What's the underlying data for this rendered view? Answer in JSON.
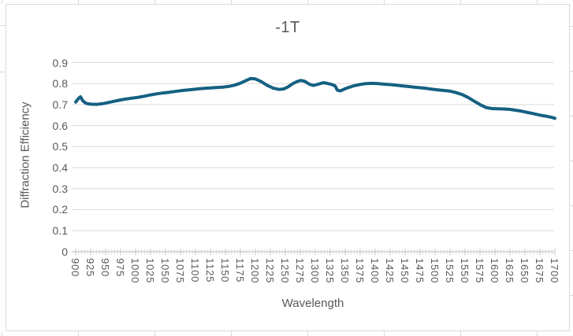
{
  "chart_data": {
    "type": "line",
    "title": "-1T",
    "xlabel": "Wavelength",
    "ylabel": "Diffraction Efficiency",
    "xlim": [
      900,
      1700
    ],
    "ylim": [
      0,
      0.9
    ],
    "grid": "horizontal",
    "legend": "none",
    "x_tick_labels": [
      "900",
      "925",
      "950",
      "975",
      "1000",
      "1025",
      "1050",
      "1075",
      "1100",
      "1125",
      "1150",
      "1175",
      "1200",
      "1225",
      "1250",
      "1275",
      "1300",
      "1325",
      "1350",
      "1375",
      "1400",
      "1425",
      "1450",
      "1475",
      "1500",
      "1525",
      "1550",
      "1575",
      "1600",
      "1625",
      "1650",
      "1675",
      "1700"
    ],
    "y_tick_labels": [
      "0.9",
      "0.8",
      "0.7",
      "0.6",
      "0.5",
      "0.4",
      "0.3",
      "0.2",
      "0.1",
      "0"
    ],
    "minor_tick_step": 5,
    "major_tick_step": 25,
    "series": [
      {
        "color": "#156082",
        "points": [
          [
            900,
            0.712
          ],
          [
            905,
            0.73
          ],
          [
            908,
            0.737
          ],
          [
            912,
            0.718
          ],
          [
            917,
            0.706
          ],
          [
            925,
            0.702
          ],
          [
            935,
            0.701
          ],
          [
            945,
            0.704
          ],
          [
            955,
            0.71
          ],
          [
            965,
            0.716
          ],
          [
            975,
            0.722
          ],
          [
            985,
            0.727
          ],
          [
            995,
            0.731
          ],
          [
            1005,
            0.735
          ],
          [
            1015,
            0.74
          ],
          [
            1025,
            0.746
          ],
          [
            1035,
            0.751
          ],
          [
            1045,
            0.755
          ],
          [
            1055,
            0.758
          ],
          [
            1065,
            0.762
          ],
          [
            1075,
            0.766
          ],
          [
            1085,
            0.769
          ],
          [
            1095,
            0.772
          ],
          [
            1105,
            0.775
          ],
          [
            1115,
            0.777
          ],
          [
            1125,
            0.779
          ],
          [
            1135,
            0.781
          ],
          [
            1145,
            0.783
          ],
          [
            1155,
            0.786
          ],
          [
            1165,
            0.792
          ],
          [
            1175,
            0.802
          ],
          [
            1185,
            0.815
          ],
          [
            1192,
            0.824
          ],
          [
            1200,
            0.822
          ],
          [
            1210,
            0.809
          ],
          [
            1220,
            0.791
          ],
          [
            1230,
            0.778
          ],
          [
            1240,
            0.772
          ],
          [
            1248,
            0.775
          ],
          [
            1255,
            0.785
          ],
          [
            1262,
            0.799
          ],
          [
            1270,
            0.81
          ],
          [
            1276,
            0.815
          ],
          [
            1283,
            0.81
          ],
          [
            1290,
            0.797
          ],
          [
            1297,
            0.791
          ],
          [
            1305,
            0.797
          ],
          [
            1313,
            0.804
          ],
          [
            1320,
            0.801
          ],
          [
            1328,
            0.795
          ],
          [
            1333,
            0.789
          ],
          [
            1337,
            0.768
          ],
          [
            1342,
            0.765
          ],
          [
            1348,
            0.773
          ],
          [
            1355,
            0.781
          ],
          [
            1365,
            0.79
          ],
          [
            1375,
            0.796
          ],
          [
            1385,
            0.8
          ],
          [
            1395,
            0.801
          ],
          [
            1405,
            0.8
          ],
          [
            1415,
            0.797
          ],
          [
            1425,
            0.795
          ],
          [
            1435,
            0.792
          ],
          [
            1445,
            0.789
          ],
          [
            1455,
            0.786
          ],
          [
            1465,
            0.783
          ],
          [
            1475,
            0.78
          ],
          [
            1485,
            0.777
          ],
          [
            1495,
            0.773
          ],
          [
            1505,
            0.77
          ],
          [
            1515,
            0.767
          ],
          [
            1525,
            0.764
          ],
          [
            1535,
            0.757
          ],
          [
            1545,
            0.748
          ],
          [
            1555,
            0.734
          ],
          [
            1565,
            0.717
          ],
          [
            1575,
            0.7
          ],
          [
            1585,
            0.686
          ],
          [
            1595,
            0.681
          ],
          [
            1605,
            0.68
          ],
          [
            1615,
            0.679
          ],
          [
            1625,
            0.677
          ],
          [
            1635,
            0.673
          ],
          [
            1645,
            0.668
          ],
          [
            1655,
            0.662
          ],
          [
            1665,
            0.656
          ],
          [
            1675,
            0.65
          ],
          [
            1685,
            0.645
          ],
          [
            1695,
            0.639
          ],
          [
            1700,
            0.635
          ]
        ]
      }
    ]
  },
  "colors": {
    "line": "#156082",
    "text": "#595959",
    "gridline": "#d9d9d9",
    "axis_line": "#bfbfbf",
    "chart_border": "#d9d9d9"
  }
}
